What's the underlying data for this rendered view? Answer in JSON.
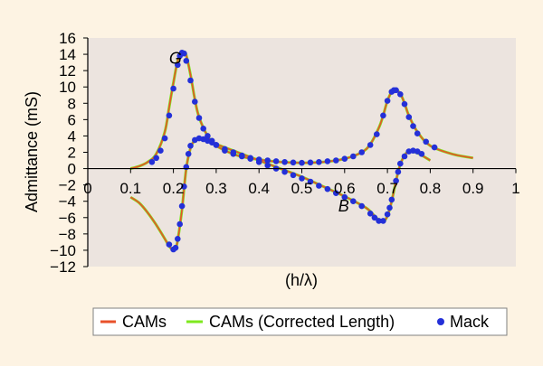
{
  "chart_data": {
    "type": "line",
    "xlabel": "(h/λ)",
    "ylabel": "Admittance (mS)",
    "xlim": [
      0,
      1
    ],
    "ylim": [
      -12,
      16
    ],
    "x_ticks": [
      "0",
      "0.1",
      "0.2",
      "0.3",
      "0.4",
      "0.5",
      "0.6",
      "0.7",
      "0.8",
      "0.9",
      "1"
    ],
    "y_ticks": [
      "16",
      "14",
      "12",
      "10",
      "8",
      "6",
      "4",
      "2",
      "0",
      "−2",
      "−4",
      "−6",
      "−8",
      "−10",
      "−12"
    ],
    "annotations": [
      {
        "text": "G",
        "x": 0.19,
        "y": 13.5
      },
      {
        "text": "B",
        "x": 0.585,
        "y": -4.6
      }
    ],
    "legend_position": "bottom",
    "series": [
      {
        "name": "CAMs",
        "style": "line",
        "color": "#e8502a",
        "curves": [
          {
            "label": "G",
            "x": [
              0.1,
              0.12,
              0.14,
              0.16,
              0.18,
              0.19,
              0.2,
              0.21,
              0.22,
              0.225,
              0.23,
              0.24,
              0.25,
              0.26,
              0.28,
              0.3,
              0.35,
              0.4,
              0.45,
              0.5,
              0.55,
              0.6,
              0.64,
              0.66,
              0.68,
              0.69,
              0.7,
              0.71,
              0.72,
              0.73,
              0.74,
              0.75,
              0.77,
              0.8,
              0.85,
              0.9
            ],
            "y": [
              0,
              0.3,
              0.8,
              1.8,
              4.5,
              7.5,
              10.5,
              13.2,
              14.2,
              14.3,
              13.9,
              11.5,
              8.5,
              6.3,
              4.0,
              2.8,
              1.6,
              1.1,
              0.8,
              0.7,
              0.8,
              1.2,
              2.0,
              3.0,
              5.0,
              6.5,
              8.3,
              9.4,
              9.6,
              9.2,
              8.0,
              6.5,
              4.5,
              2.8,
              1.8,
              1.3
            ]
          },
          {
            "label": "B",
            "x": [
              0.1,
              0.12,
              0.14,
              0.16,
              0.18,
              0.19,
              0.2,
              0.205,
              0.21,
              0.22,
              0.23,
              0.24,
              0.25,
              0.26,
              0.28,
              0.3,
              0.35,
              0.4,
              0.45,
              0.5,
              0.55,
              0.6,
              0.65,
              0.67,
              0.68,
              0.69,
              0.7,
              0.71,
              0.72,
              0.73,
              0.74,
              0.75,
              0.77,
              0.8
            ],
            "y": [
              -3.5,
              -4.2,
              -5.4,
              -6.9,
              -8.6,
              -9.5,
              -10.0,
              -9.8,
              -8.8,
              -5.0,
              0.0,
              2.5,
              3.5,
              3.7,
              3.5,
              3.0,
              2.0,
              1.0,
              0.0,
              -1.0,
              -2.2,
              -3.4,
              -4.8,
              -5.8,
              -6.3,
              -6.5,
              -5.8,
              -4.0,
              -1.5,
              0.5,
              1.6,
              2.1,
              1.9,
              1.0
            ]
          }
        ]
      },
      {
        "name": "CAMs (Corrected Length)",
        "style": "line",
        "color": "#7ee81e",
        "curves": [
          {
            "label": "G",
            "x": [
              0.1,
              0.12,
              0.14,
              0.16,
              0.18,
              0.19,
              0.2,
              0.21,
              0.22,
              0.225,
              0.23,
              0.24,
              0.25,
              0.26,
              0.28,
              0.3,
              0.35,
              0.4,
              0.45,
              0.5,
              0.55,
              0.6,
              0.64,
              0.66,
              0.68,
              0.69,
              0.7,
              0.71,
              0.72,
              0.73,
              0.74,
              0.75,
              0.77,
              0.8,
              0.85,
              0.9
            ],
            "y": [
              0,
              0.3,
              0.8,
              1.8,
              4.5,
              7.5,
              10.5,
              13.2,
              14.2,
              14.3,
              13.9,
              11.5,
              8.5,
              6.3,
              4.0,
              2.8,
              1.6,
              1.1,
              0.8,
              0.7,
              0.8,
              1.2,
              2.0,
              3.0,
              5.0,
              6.5,
              8.3,
              9.4,
              9.6,
              9.2,
              8.0,
              6.5,
              4.5,
              2.8,
              1.8,
              1.3
            ]
          },
          {
            "label": "B",
            "x": [
              0.1,
              0.12,
              0.14,
              0.16,
              0.18,
              0.19,
              0.2,
              0.205,
              0.21,
              0.22,
              0.23,
              0.24,
              0.25,
              0.26,
              0.28,
              0.3,
              0.35,
              0.4,
              0.45,
              0.5,
              0.55,
              0.6,
              0.65,
              0.67,
              0.68,
              0.69,
              0.7,
              0.71,
              0.72,
              0.73,
              0.74,
              0.75,
              0.77,
              0.8
            ],
            "y": [
              -3.5,
              -4.2,
              -5.4,
              -6.9,
              -8.6,
              -9.5,
              -10.0,
              -9.8,
              -8.8,
              -5.0,
              0.0,
              2.5,
              3.5,
              3.7,
              3.5,
              3.0,
              2.0,
              1.0,
              0.0,
              -1.0,
              -2.2,
              -3.4,
              -4.8,
              -5.8,
              -6.3,
              -6.5,
              -5.8,
              -4.0,
              -1.5,
              0.5,
              1.6,
              2.1,
              1.9,
              1.0
            ]
          }
        ]
      },
      {
        "name": "Mack",
        "style": "markers",
        "color": "#2430d8",
        "points": [
          {
            "x": 0.15,
            "y": 0.8
          },
          {
            "x": 0.16,
            "y": 1.3
          },
          {
            "x": 0.17,
            "y": 2.2
          },
          {
            "x": 0.18,
            "y": 3.7
          },
          {
            "x": 0.19,
            "y": 6.5
          },
          {
            "x": 0.2,
            "y": 9.8
          },
          {
            "x": 0.21,
            "y": 12.7
          },
          {
            "x": 0.215,
            "y": 13.8
          },
          {
            "x": 0.22,
            "y": 14.2
          },
          {
            "x": 0.225,
            "y": 14.1
          },
          {
            "x": 0.23,
            "y": 13.2
          },
          {
            "x": 0.24,
            "y": 10.8
          },
          {
            "x": 0.25,
            "y": 8.2
          },
          {
            "x": 0.26,
            "y": 6.2
          },
          {
            "x": 0.27,
            "y": 4.9
          },
          {
            "x": 0.28,
            "y": 4.0
          },
          {
            "x": 0.29,
            "y": 3.4
          },
          {
            "x": 0.3,
            "y": 2.9
          },
          {
            "x": 0.32,
            "y": 2.2
          },
          {
            "x": 0.34,
            "y": 1.8
          },
          {
            "x": 0.36,
            "y": 1.5
          },
          {
            "x": 0.38,
            "y": 1.3
          },
          {
            "x": 0.4,
            "y": 1.1
          },
          {
            "x": 0.42,
            "y": 1.0
          },
          {
            "x": 0.44,
            "y": 0.9
          },
          {
            "x": 0.46,
            "y": 0.8
          },
          {
            "x": 0.48,
            "y": 0.75
          },
          {
            "x": 0.5,
            "y": 0.7
          },
          {
            "x": 0.52,
            "y": 0.75
          },
          {
            "x": 0.54,
            "y": 0.8
          },
          {
            "x": 0.56,
            "y": 0.9
          },
          {
            "x": 0.58,
            "y": 1.0
          },
          {
            "x": 0.6,
            "y": 1.2
          },
          {
            "x": 0.62,
            "y": 1.5
          },
          {
            "x": 0.64,
            "y": 2.0
          },
          {
            "x": 0.66,
            "y": 2.9
          },
          {
            "x": 0.675,
            "y": 4.2
          },
          {
            "x": 0.69,
            "y": 6.5
          },
          {
            "x": 0.7,
            "y": 8.3
          },
          {
            "x": 0.71,
            "y": 9.4
          },
          {
            "x": 0.715,
            "y": 9.6
          },
          {
            "x": 0.72,
            "y": 9.6
          },
          {
            "x": 0.73,
            "y": 9.1
          },
          {
            "x": 0.74,
            "y": 7.9
          },
          {
            "x": 0.75,
            "y": 6.3
          },
          {
            "x": 0.76,
            "y": 5.2
          },
          {
            "x": 0.77,
            "y": 4.3
          },
          {
            "x": 0.79,
            "y": 3.3
          },
          {
            "x": 0.81,
            "y": 2.6
          },
          {
            "x": 0.19,
            "y": -9.3
          },
          {
            "x": 0.2,
            "y": -9.9
          },
          {
            "x": 0.205,
            "y": -9.7
          },
          {
            "x": 0.21,
            "y": -8.6
          },
          {
            "x": 0.215,
            "y": -6.8
          },
          {
            "x": 0.22,
            "y": -4.6
          },
          {
            "x": 0.225,
            "y": -2.2
          },
          {
            "x": 0.23,
            "y": 0.2
          },
          {
            "x": 0.235,
            "y": 1.8
          },
          {
            "x": 0.24,
            "y": 2.8
          },
          {
            "x": 0.25,
            "y": 3.5
          },
          {
            "x": 0.26,
            "y": 3.7
          },
          {
            "x": 0.27,
            "y": 3.6
          },
          {
            "x": 0.28,
            "y": 3.4
          },
          {
            "x": 0.29,
            "y": 3.2
          },
          {
            "x": 0.3,
            "y": 2.9
          },
          {
            "x": 0.32,
            "y": 2.4
          },
          {
            "x": 0.34,
            "y": 2.0
          },
          {
            "x": 0.36,
            "y": 1.6
          },
          {
            "x": 0.38,
            "y": 1.2
          },
          {
            "x": 0.4,
            "y": 0.8
          },
          {
            "x": 0.42,
            "y": 0.4
          },
          {
            "x": 0.44,
            "y": 0.0
          },
          {
            "x": 0.46,
            "y": -0.4
          },
          {
            "x": 0.48,
            "y": -0.8
          },
          {
            "x": 0.5,
            "y": -1.2
          },
          {
            "x": 0.52,
            "y": -1.6
          },
          {
            "x": 0.54,
            "y": -2.1
          },
          {
            "x": 0.56,
            "y": -2.5
          },
          {
            "x": 0.58,
            "y": -3.0
          },
          {
            "x": 0.6,
            "y": -3.5
          },
          {
            "x": 0.62,
            "y": -4.0
          },
          {
            "x": 0.64,
            "y": -4.6
          },
          {
            "x": 0.66,
            "y": -5.5
          },
          {
            "x": 0.67,
            "y": -6.0
          },
          {
            "x": 0.68,
            "y": -6.4
          },
          {
            "x": 0.69,
            "y": -6.4
          },
          {
            "x": 0.7,
            "y": -5.6
          },
          {
            "x": 0.705,
            "y": -4.8
          },
          {
            "x": 0.71,
            "y": -3.8
          },
          {
            "x": 0.72,
            "y": -1.5
          },
          {
            "x": 0.725,
            "y": -0.4
          },
          {
            "x": 0.73,
            "y": 0.6
          },
          {
            "x": 0.74,
            "y": 1.5
          },
          {
            "x": 0.75,
            "y": 2.1
          },
          {
            "x": 0.76,
            "y": 2.2
          },
          {
            "x": 0.77,
            "y": 2.1
          },
          {
            "x": 0.78,
            "y": 1.8
          }
        ]
      }
    ]
  },
  "page": {
    "background": "#fdf3e3",
    "plot_background": "#ece4df",
    "legend_border": "#808080"
  }
}
